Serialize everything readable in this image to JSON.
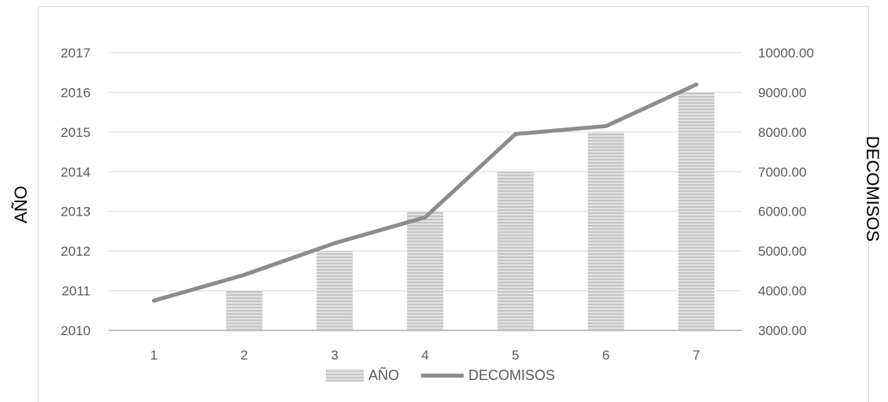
{
  "chart_data": {
    "type": "bar",
    "categories": [
      "1",
      "2",
      "3",
      "4",
      "5",
      "6",
      "7"
    ],
    "series": [
      {
        "name": "AÑO",
        "type": "bar",
        "axis": "left",
        "values": [
          2010,
          2011,
          2012,
          2013,
          2014,
          2015,
          2016
        ]
      },
      {
        "name": "DECOMISOS",
        "type": "line",
        "axis": "right",
        "values": [
          3750,
          4400,
          5200,
          5850,
          7950,
          8150,
          9200
        ]
      }
    ],
    "title": "",
    "ylabel": "AÑO",
    "y2label": "DECOMISOS",
    "ylim": [
      2010,
      2017
    ],
    "y2lim": [
      3000,
      10000
    ],
    "y_ticks": [
      "2010",
      "2011",
      "2012",
      "2013",
      "2014",
      "2015",
      "2016",
      "2017"
    ],
    "y2_ticks": [
      "3000.00",
      "4000.00",
      "5000.00",
      "6000.00",
      "7000.00",
      "8000.00",
      "9000.00",
      "10000.00"
    ],
    "grid": true,
    "legend_position": "bottom",
    "colors": {
      "bar_light": "#e3e3e3",
      "bar_dark": "#c4c4c4",
      "line": "#8c8c8c",
      "grid": "#d9d9d9",
      "axis": "#bfbfbf"
    }
  }
}
